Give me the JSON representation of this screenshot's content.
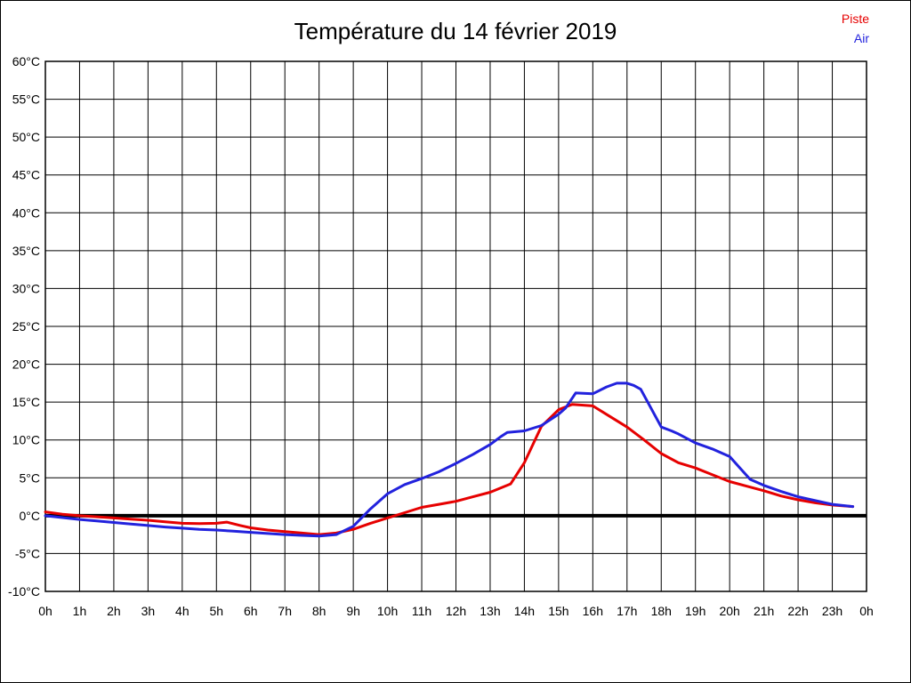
{
  "page": {
    "background": "#ffffff",
    "border_color": "#000000"
  },
  "header": {
    "title": "Température du 14 février 2019"
  },
  "legend": {
    "position": "top-right",
    "items": [
      {
        "label": "Piste",
        "color": "#e60000"
      },
      {
        "label": "Air",
        "color": "#2222dd"
      }
    ]
  },
  "chart_data": {
    "type": "line",
    "title": "Température du 14 février 2019",
    "xlabel": "",
    "ylabel": "",
    "grid": true,
    "grid_color": "#000000",
    "legend_position": "top-right",
    "x_axis": {
      "unit": "h",
      "min": 0,
      "max": 24,
      "tick_step": 1,
      "tick_labels": [
        "0h",
        "1h",
        "2h",
        "3h",
        "4h",
        "5h",
        "6h",
        "7h",
        "8h",
        "9h",
        "10h",
        "11h",
        "12h",
        "13h",
        "14h",
        "15h",
        "16h",
        "17h",
        "18h",
        "19h",
        "20h",
        "21h",
        "22h",
        "23h",
        "0h"
      ]
    },
    "y_axis": {
      "unit": "°C",
      "min": -10,
      "max": 60,
      "tick_step": 5,
      "tick_labels": [
        "60°C",
        "55°C",
        "50°C",
        "45°C",
        "40°C",
        "35°C",
        "30°C",
        "25°C",
        "20°C",
        "15°C",
        "10°C",
        "5°C",
        "0°C",
        "-5°C",
        "-10°C"
      ]
    },
    "zero_line": {
      "value": 0,
      "color": "#000000",
      "width": 4
    },
    "series": [
      {
        "name": "Piste",
        "color": "#e60000",
        "points": [
          [
            0,
            0.5
          ],
          [
            0.5,
            0.2
          ],
          [
            1,
            0
          ],
          [
            1.5,
            -0.15
          ],
          [
            2,
            -0.3
          ],
          [
            2.5,
            -0.45
          ],
          [
            3,
            -0.6
          ],
          [
            3.5,
            -0.8
          ],
          [
            4,
            -1
          ],
          [
            4.5,
            -1.05
          ],
          [
            5,
            -1
          ],
          [
            5.3,
            -0.85
          ],
          [
            5.7,
            -1.3
          ],
          [
            6,
            -1.6
          ],
          [
            6.5,
            -1.9
          ],
          [
            7,
            -2.1
          ],
          [
            7.5,
            -2.3
          ],
          [
            8,
            -2.5
          ],
          [
            8.5,
            -2.3
          ],
          [
            9,
            -1.8
          ],
          [
            9.5,
            -1
          ],
          [
            10,
            -0.3
          ],
          [
            10.5,
            0.4
          ],
          [
            11,
            1.1
          ],
          [
            11.5,
            1.5
          ],
          [
            12,
            1.9
          ],
          [
            12.5,
            2.5
          ],
          [
            13,
            3.1
          ],
          [
            13.6,
            4.2
          ],
          [
            14,
            7
          ],
          [
            14.5,
            11.8
          ],
          [
            15,
            14
          ],
          [
            15.4,
            14.7
          ],
          [
            16,
            14.5
          ],
          [
            16.5,
            13.1
          ],
          [
            17,
            11.7
          ],
          [
            17.5,
            10
          ],
          [
            18,
            8.2
          ],
          [
            18.5,
            7
          ],
          [
            19,
            6.3
          ],
          [
            19.5,
            5.4
          ],
          [
            20,
            4.5
          ],
          [
            20.5,
            3.9
          ],
          [
            21,
            3.3
          ],
          [
            21.5,
            2.6
          ],
          [
            22,
            2.1
          ],
          [
            22.5,
            1.7
          ],
          [
            23,
            1.4
          ],
          [
            23.6,
            1.2
          ]
        ]
      },
      {
        "name": "Air",
        "color": "#2222dd",
        "points": [
          [
            0,
            0
          ],
          [
            0.5,
            -0.25
          ],
          [
            1,
            -0.5
          ],
          [
            1.5,
            -0.7
          ],
          [
            2,
            -0.9
          ],
          [
            2.5,
            -1.1
          ],
          [
            3,
            -1.3
          ],
          [
            3.5,
            -1.5
          ],
          [
            4,
            -1.65
          ],
          [
            4.5,
            -1.8
          ],
          [
            5,
            -1.9
          ],
          [
            5.5,
            -2.05
          ],
          [
            6,
            -2.2
          ],
          [
            6.5,
            -2.35
          ],
          [
            7,
            -2.5
          ],
          [
            7.5,
            -2.6
          ],
          [
            8,
            -2.7
          ],
          [
            8.5,
            -2.5
          ],
          [
            9,
            -1.4
          ],
          [
            9.5,
            0.9
          ],
          [
            10,
            2.9
          ],
          [
            10.5,
            4.1
          ],
          [
            11,
            4.9
          ],
          [
            11.5,
            5.8
          ],
          [
            12,
            6.9
          ],
          [
            12.5,
            8.1
          ],
          [
            13,
            9.4
          ],
          [
            13.3,
            10.4
          ],
          [
            13.5,
            11
          ],
          [
            14,
            11.2
          ],
          [
            14.5,
            11.9
          ],
          [
            15,
            13.4
          ],
          [
            15.2,
            14.2
          ],
          [
            15.5,
            16.2
          ],
          [
            16,
            16.1
          ],
          [
            16.4,
            17
          ],
          [
            16.7,
            17.5
          ],
          [
            17,
            17.5
          ],
          [
            17.2,
            17.2
          ],
          [
            17.4,
            16.7
          ],
          [
            18,
            11.7
          ],
          [
            18.3,
            11.2
          ],
          [
            18.5,
            10.8
          ],
          [
            19,
            9.6
          ],
          [
            19.5,
            8.8
          ],
          [
            20,
            7.8
          ],
          [
            20.3,
            6.3
          ],
          [
            20.6,
            4.8
          ],
          [
            21,
            4
          ],
          [
            21.5,
            3.2
          ],
          [
            22,
            2.5
          ],
          [
            22.5,
            2
          ],
          [
            23,
            1.5
          ],
          [
            23.6,
            1.2
          ]
        ]
      }
    ]
  }
}
